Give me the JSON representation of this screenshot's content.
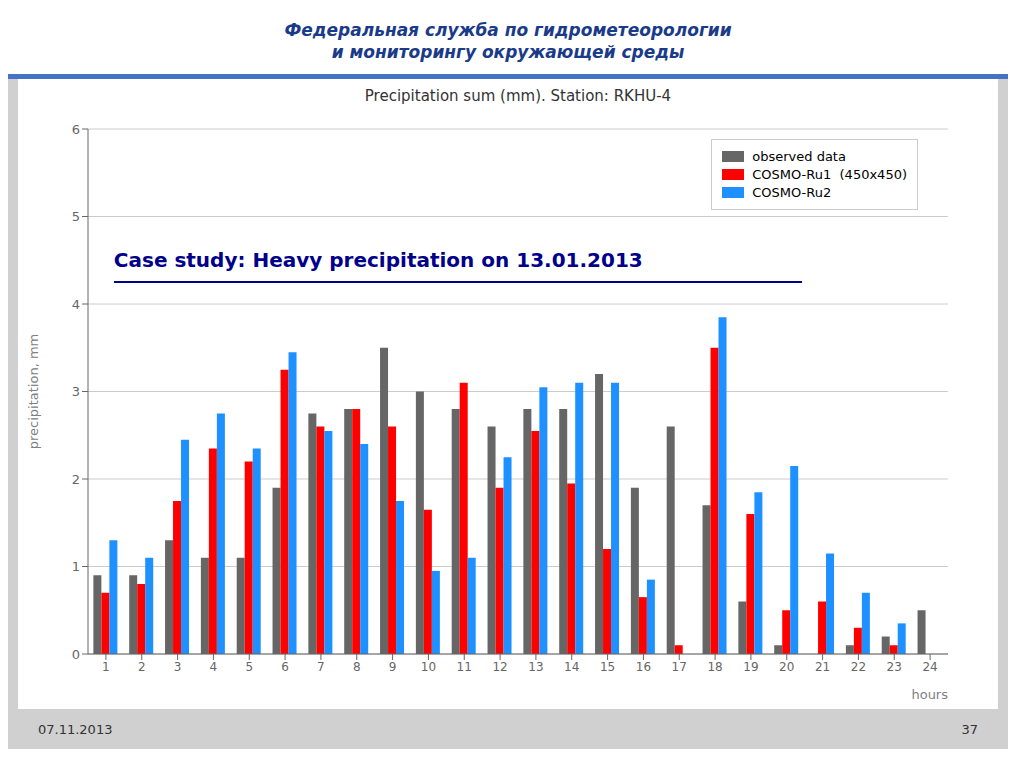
{
  "chart_data": {
    "type": "bar",
    "title": "Precipitation sum (mm). Station: RKHU-4",
    "header": "Федеральная служба по гидрометеорологии\nи мониторингу окружающей среды",
    "annotations": [
      "Case study: Heavy precipitation on 13.01.2013"
    ],
    "footer": [
      "07.11.2013",
      "37"
    ],
    "xlabel": "hours",
    "ylabel": "precipitation, mm",
    "categories": [
      "1",
      "2",
      "3",
      "4",
      "5",
      "6",
      "7",
      "8",
      "9",
      "10",
      "11",
      "12",
      "13",
      "14",
      "15",
      "16",
      "17",
      "18",
      "19",
      "20",
      "21",
      "22",
      "23",
      "24"
    ],
    "series": [
      {
        "name": "observed data",
        "color": "#666666",
        "values": [
          0.9,
          0.9,
          1.3,
          1.1,
          1.1,
          1.9,
          2.75,
          2.8,
          3.5,
          3.0,
          2.8,
          2.6,
          2.8,
          2.8,
          3.2,
          1.9,
          2.6,
          1.7,
          0.6,
          0.1,
          0.0,
          0.1,
          0.2,
          0.5
        ]
      },
      {
        "name": "COSMO-Ru1  (450x450)",
        "color": "#ff0000",
        "values": [
          0.7,
          0.8,
          1.75,
          2.35,
          2.2,
          3.25,
          2.6,
          2.8,
          2.6,
          1.65,
          3.1,
          1.9,
          2.55,
          1.95,
          1.2,
          0.65,
          0.1,
          3.5,
          1.6,
          0.5,
          0.6,
          0.3,
          0.1,
          0.0
        ]
      },
      {
        "name": "COSMO-Ru2",
        "color": "#1e90ff",
        "values": [
          1.3,
          1.1,
          2.45,
          2.75,
          2.35,
          3.45,
          2.55,
          2.4,
          1.75,
          0.95,
          1.1,
          2.25,
          3.05,
          3.1,
          3.1,
          0.85,
          0.0,
          3.85,
          1.85,
          2.15,
          1.15,
          0.7,
          0.35,
          0.0
        ]
      }
    ],
    "ylim": [
      0,
      6
    ],
    "yticks": [
      0,
      1,
      2,
      3,
      4,
      5,
      6
    ],
    "grid": true,
    "legend": "upper right"
  }
}
